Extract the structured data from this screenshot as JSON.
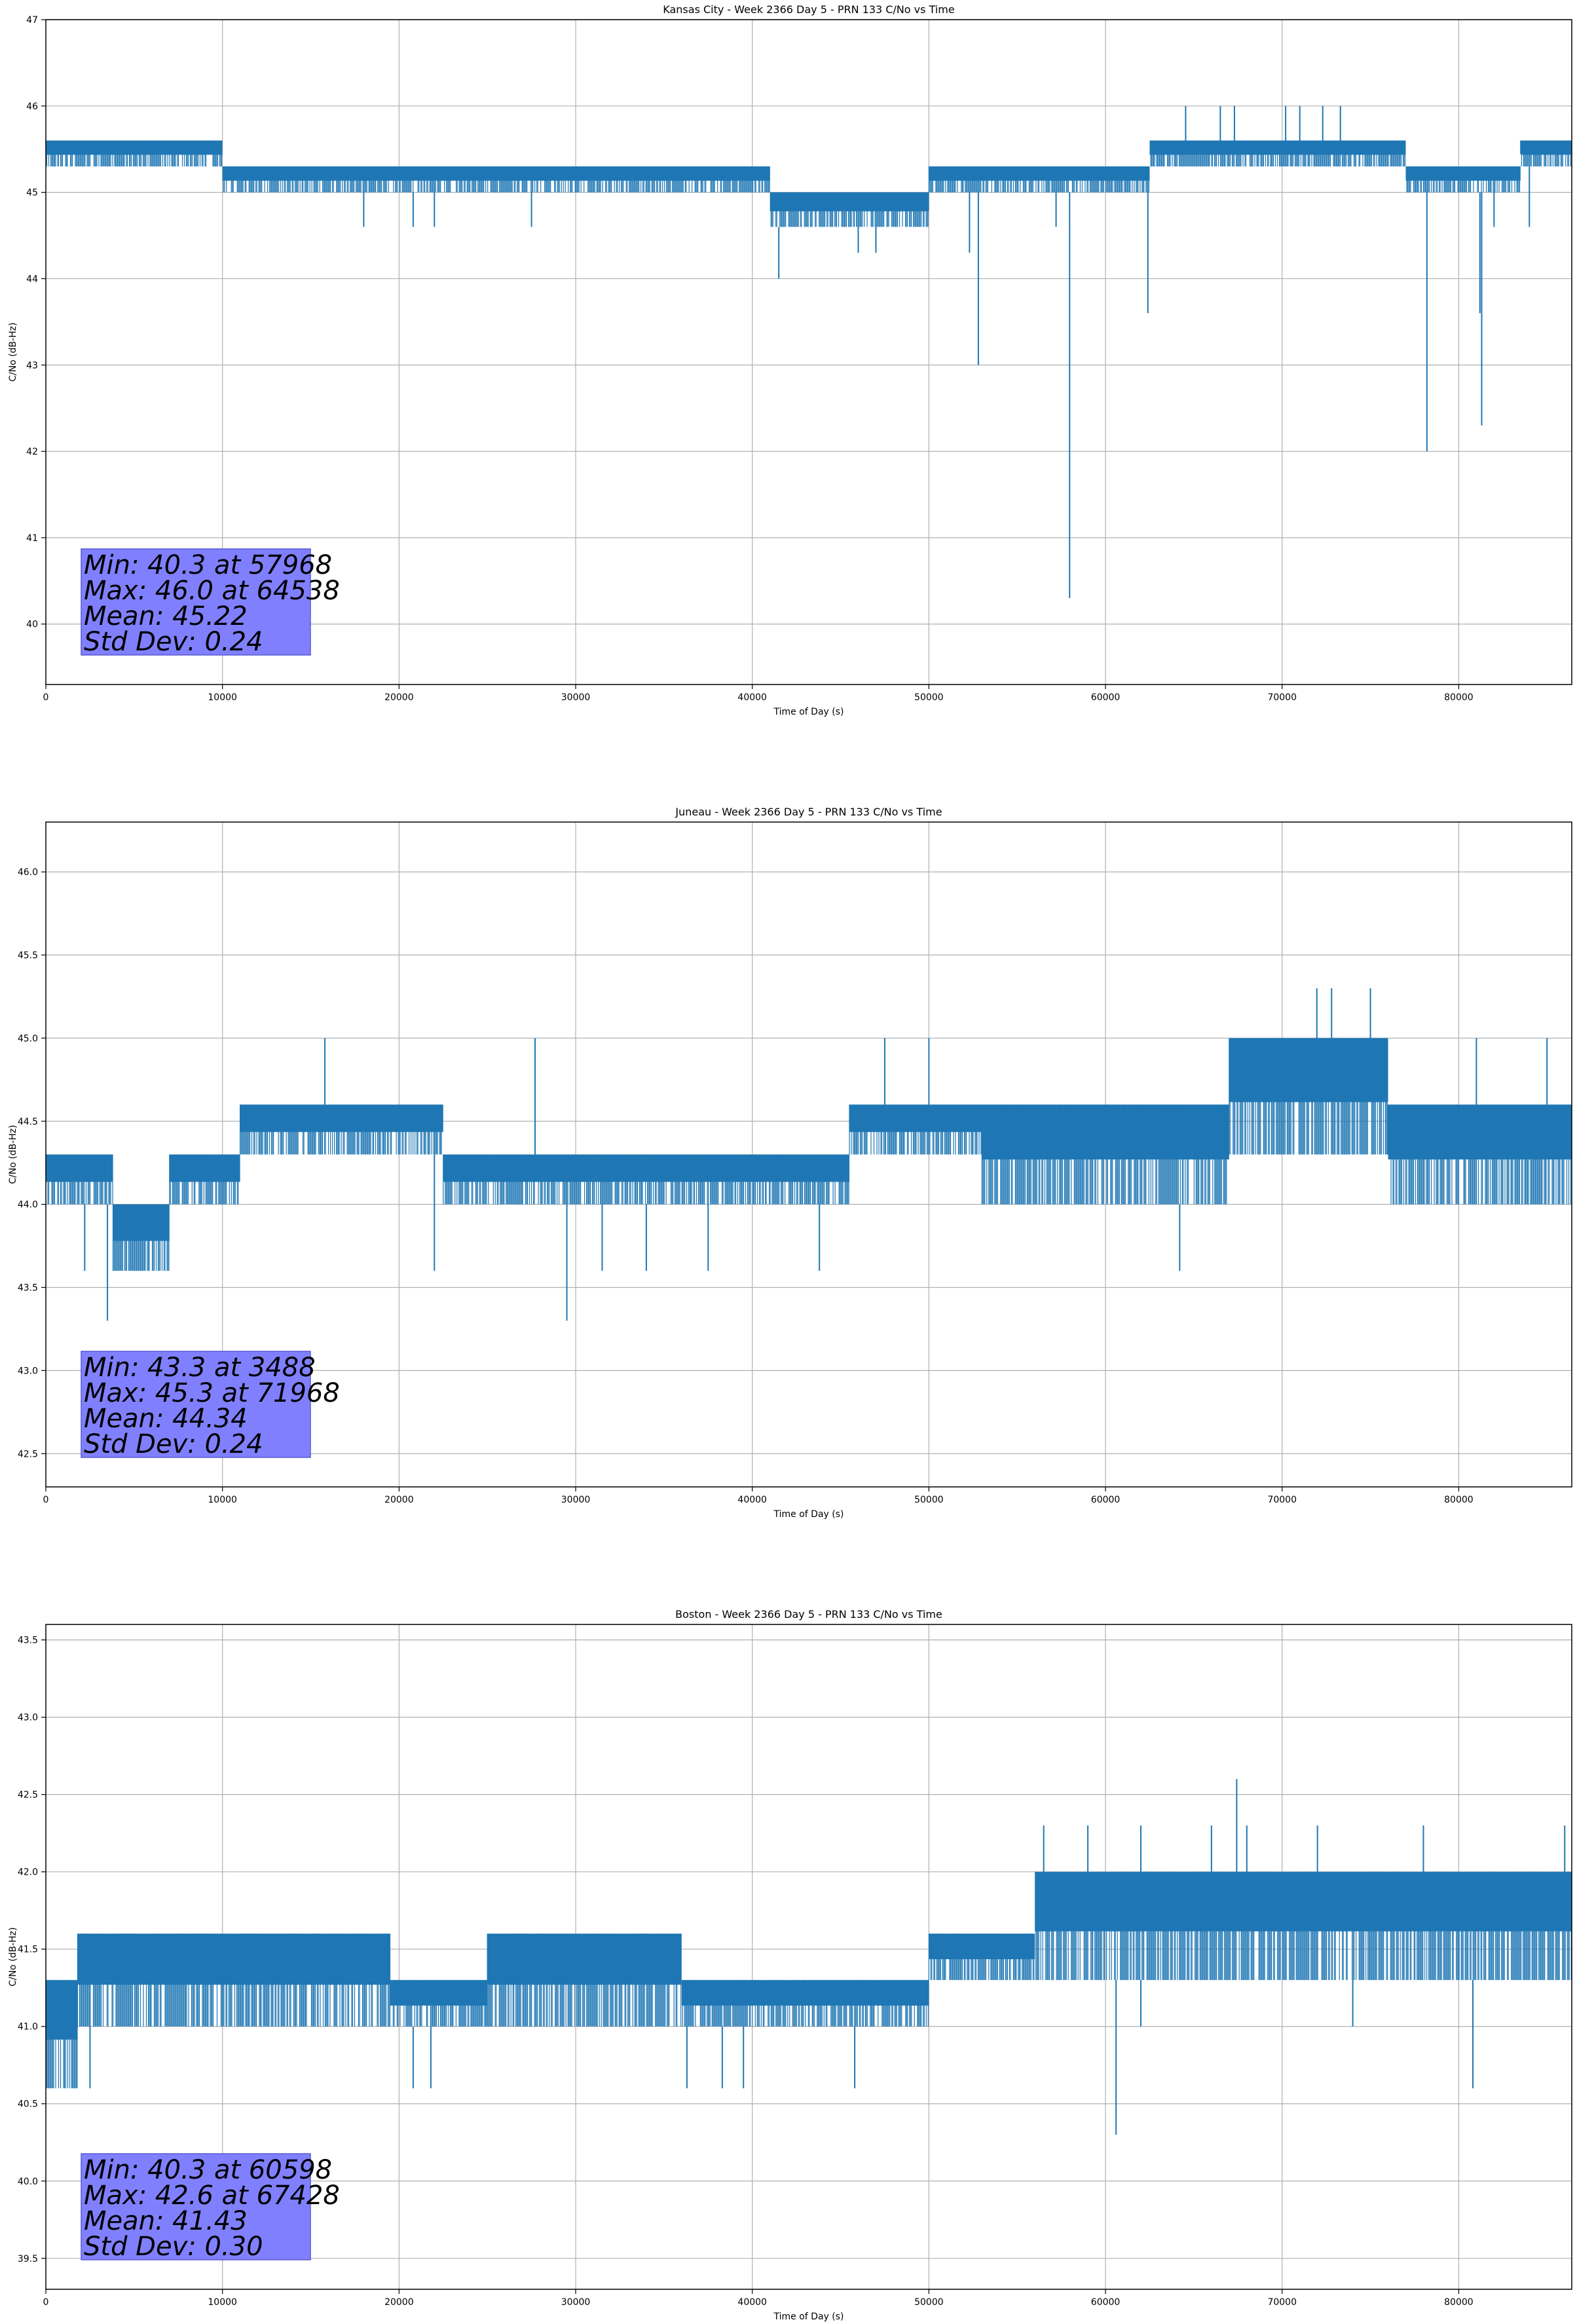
{
  "chart_data": [
    {
      "type": "line",
      "title": "Kansas City - Week 2366 Day 5 - PRN 133 C/No vs Time",
      "xlabel": "Time of Day (s)",
      "ylabel": "C/No (dB-Hz)",
      "xlim": [
        0,
        86400
      ],
      "ylim": [
        39.3,
        47
      ],
      "xticks": [
        0,
        10000,
        20000,
        30000,
        40000,
        50000,
        60000,
        70000,
        80000
      ],
      "yticks": [
        40,
        41,
        42,
        43,
        44,
        45,
        46,
        47
      ],
      "ytick_labels": [
        "40",
        "41",
        "42",
        "43",
        "44",
        "45",
        "46",
        "47"
      ],
      "grid": true,
      "series_color": "#1f77b4",
      "stats_box_color": "#8080ff",
      "stats": [
        "Min: 40.3 at 57968",
        "Max: 46.0 at 64538",
        "Mean: 45.22",
        "Std Dev: 0.24"
      ],
      "segments": [
        {
          "x": [
            0,
            10000
          ],
          "lo": 45.3,
          "hi": 45.6
        },
        {
          "x": [
            10000,
            41000
          ],
          "lo": 45.0,
          "hi": 45.3
        },
        {
          "x": [
            41000,
            44500
          ],
          "lo": 44.6,
          "hi": 45.0
        },
        {
          "x": [
            44500,
            50000
          ],
          "lo": 44.6,
          "hi": 45.0
        },
        {
          "x": [
            50000,
            62500
          ],
          "lo": 45.0,
          "hi": 45.3
        },
        {
          "x": [
            62500,
            77000
          ],
          "lo": 45.3,
          "hi": 45.6
        },
        {
          "x": [
            77000,
            83500
          ],
          "lo": 45.0,
          "hi": 45.3
        },
        {
          "x": [
            83500,
            86400
          ],
          "lo": 45.3,
          "hi": 45.6
        }
      ],
      "spikes": [
        {
          "x": 18000,
          "y": 44.6
        },
        {
          "x": 20800,
          "y": 44.6
        },
        {
          "x": 22000,
          "y": 44.6
        },
        {
          "x": 27500,
          "y": 44.6
        },
        {
          "x": 41500,
          "y": 44.0
        },
        {
          "x": 46000,
          "y": 44.3
        },
        {
          "x": 47000,
          "y": 44.3
        },
        {
          "x": 52300,
          "y": 44.3
        },
        {
          "x": 52800,
          "y": 43.0
        },
        {
          "x": 57200,
          "y": 44.6
        },
        {
          "x": 57968,
          "y": 40.3
        },
        {
          "x": 62400,
          "y": 43.6
        },
        {
          "x": 78200,
          "y": 42.0
        },
        {
          "x": 81200,
          "y": 43.6
        },
        {
          "x": 81300,
          "y": 42.3
        },
        {
          "x": 82000,
          "y": 44.6
        },
        {
          "x": 84000,
          "y": 44.6
        }
      ],
      "upticks": [
        {
          "x": 64538,
          "y": 46.0
        },
        {
          "x": 66500,
          "y": 46.0
        },
        {
          "x": 67300,
          "y": 46.0
        },
        {
          "x": 70200,
          "y": 46.0
        },
        {
          "x": 71000,
          "y": 46.0
        },
        {
          "x": 72300,
          "y": 46.0
        },
        {
          "x": 73300,
          "y": 46.0
        }
      ]
    },
    {
      "type": "line",
      "title": "Juneau - Week 2366 Day 5 - PRN 133 C/No vs Time",
      "xlabel": "Time of Day (s)",
      "ylabel": "C/No (dB-Hz)",
      "xlim": [
        0,
        86400
      ],
      "ylim": [
        42.3,
        46.3
      ],
      "xticks": [
        0,
        10000,
        20000,
        30000,
        40000,
        50000,
        60000,
        70000,
        80000
      ],
      "yticks": [
        42.5,
        43.0,
        43.5,
        44.0,
        44.5,
        45.0,
        45.5,
        46.0
      ],
      "ytick_labels": [
        "42.5",
        "43.0",
        "43.5",
        "44.0",
        "44.5",
        "45.0",
        "45.5",
        "46.0"
      ],
      "grid": true,
      "series_color": "#1f77b4",
      "stats_box_color": "#8080ff",
      "stats": [
        "Min: 43.3 at 3488",
        "Max: 45.3 at 71968",
        "Mean: 44.34",
        "Std Dev: 0.24"
      ],
      "segments": [
        {
          "x": [
            0,
            3800
          ],
          "lo": 44.0,
          "hi": 44.3
        },
        {
          "x": [
            3800,
            7000
          ],
          "lo": 43.6,
          "hi": 44.0
        },
        {
          "x": [
            7000,
            11000
          ],
          "lo": 44.0,
          "hi": 44.3
        },
        {
          "x": [
            11000,
            22500
          ],
          "lo": 44.3,
          "hi": 44.6
        },
        {
          "x": [
            22500,
            27000
          ],
          "lo": 44.0,
          "hi": 44.3
        },
        {
          "x": [
            27000,
            45500
          ],
          "lo": 44.0,
          "hi": 44.3
        },
        {
          "x": [
            45500,
            53000
          ],
          "lo": 44.3,
          "hi": 44.6
        },
        {
          "x": [
            53000,
            67000
          ],
          "lo": 44.0,
          "hi": 44.6
        },
        {
          "x": [
            67000,
            76000
          ],
          "lo": 44.3,
          "hi": 45.0
        },
        {
          "x": [
            76000,
            86400
          ],
          "lo": 44.0,
          "hi": 44.6
        }
      ],
      "spikes": [
        {
          "x": 2200,
          "y": 43.6
        },
        {
          "x": 3488,
          "y": 43.3
        },
        {
          "x": 22000,
          "y": 43.6
        },
        {
          "x": 29500,
          "y": 43.3
        },
        {
          "x": 31500,
          "y": 43.6
        },
        {
          "x": 34000,
          "y": 43.6
        },
        {
          "x": 37500,
          "y": 43.6
        },
        {
          "x": 43800,
          "y": 43.6
        },
        {
          "x": 64200,
          "y": 43.6
        }
      ],
      "upticks": [
        {
          "x": 15800,
          "y": 45.0
        },
        {
          "x": 27700,
          "y": 45.0
        },
        {
          "x": 47500,
          "y": 45.0
        },
        {
          "x": 50000,
          "y": 45.0
        },
        {
          "x": 71968,
          "y": 45.3
        },
        {
          "x": 72800,
          "y": 45.3
        },
        {
          "x": 75000,
          "y": 45.3
        },
        {
          "x": 81000,
          "y": 45.0
        },
        {
          "x": 85000,
          "y": 45.0
        }
      ]
    },
    {
      "type": "line",
      "title": "Boston - Week 2366 Day 5 - PRN 133 C/No vs Time",
      "xlabel": "Time of Day (s)",
      "ylabel": "C/No (dB-Hz)",
      "xlim": [
        0,
        86400
      ],
      "ylim": [
        39.3,
        43.6
      ],
      "xticks": [
        0,
        10000,
        20000,
        30000,
        40000,
        50000,
        60000,
        70000,
        80000
      ],
      "yticks": [
        39.5,
        40.0,
        40.5,
        41.0,
        41.5,
        42.0,
        42.5,
        43.0,
        43.5
      ],
      "ytick_labels": [
        "39.5",
        "40.0",
        "40.5",
        "41.0",
        "41.5",
        "42.0",
        "42.5",
        "43.0",
        "43.5"
      ],
      "grid": true,
      "series_color": "#1f77b4",
      "stats_box_color": "#8080ff",
      "stats": [
        "Min: 40.3 at 60598",
        "Max: 42.6 at 67428",
        "Mean: 41.43",
        "Std Dev: 0.30"
      ],
      "segments": [
        {
          "x": [
            0,
            1800
          ],
          "lo": 40.6,
          "hi": 41.3
        },
        {
          "x": [
            1800,
            19500
          ],
          "lo": 41.0,
          "hi": 41.6
        },
        {
          "x": [
            19500,
            25000
          ],
          "lo": 41.0,
          "hi": 41.3
        },
        {
          "x": [
            25000,
            36000
          ],
          "lo": 41.0,
          "hi": 41.6
        },
        {
          "x": [
            36000,
            50000
          ],
          "lo": 41.0,
          "hi": 41.3
        },
        {
          "x": [
            50000,
            56000
          ],
          "lo": 41.3,
          "hi": 41.6
        },
        {
          "x": [
            56000,
            86400
          ],
          "lo": 41.3,
          "hi": 42.0
        }
      ],
      "spikes": [
        {
          "x": 1000,
          "y": 40.6
        },
        {
          "x": 2500,
          "y": 40.6
        },
        {
          "x": 20800,
          "y": 40.6
        },
        {
          "x": 21800,
          "y": 40.6
        },
        {
          "x": 36300,
          "y": 40.6
        },
        {
          "x": 38300,
          "y": 40.6
        },
        {
          "x": 39500,
          "y": 40.6
        },
        {
          "x": 45800,
          "y": 40.6
        },
        {
          "x": 60598,
          "y": 40.3
        },
        {
          "x": 80800,
          "y": 40.6
        },
        {
          "x": 62000,
          "y": 41.0
        },
        {
          "x": 74000,
          "y": 41.0
        }
      ],
      "upticks": [
        {
          "x": 56500,
          "y": 42.3
        },
        {
          "x": 59000,
          "y": 42.3
        },
        {
          "x": 62000,
          "y": 42.3
        },
        {
          "x": 66000,
          "y": 42.3
        },
        {
          "x": 67428,
          "y": 42.6
        },
        {
          "x": 68000,
          "y": 42.3
        },
        {
          "x": 72000,
          "y": 42.3
        },
        {
          "x": 78000,
          "y": 42.3
        },
        {
          "x": 86000,
          "y": 42.3
        }
      ]
    }
  ]
}
